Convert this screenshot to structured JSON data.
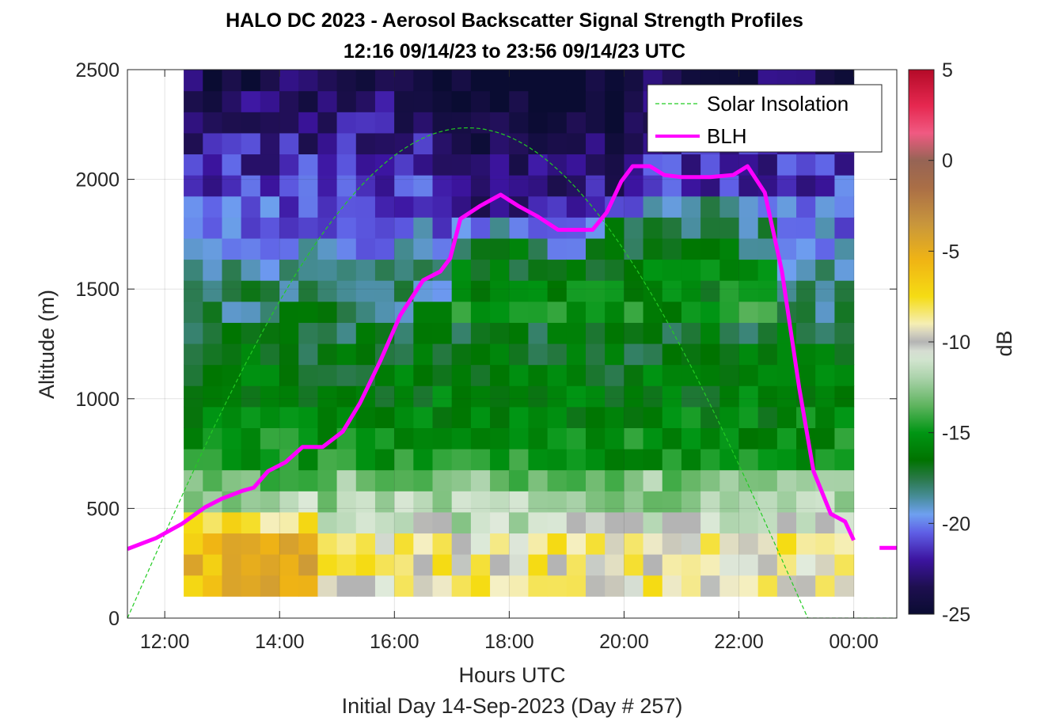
{
  "chart_data": {
    "type": "heatmap",
    "title": "HALO DC 2023 - Aerosol Backscatter Signal Strength Profiles",
    "subtitle": "12:16 09/14/23 to 23:56 09/14/23  UTC",
    "xlabel": "Hours UTC",
    "ylabel": "Altitude (m)",
    "footnote": "Initial Day 14-Sep-2023 (Day # 257)",
    "x_ticks": [
      "12:00",
      "14:00",
      "16:00",
      "18:00",
      "20:00",
      "22:00",
      "00:00"
    ],
    "x_tick_hours": [
      12,
      14,
      16,
      18,
      20,
      22,
      24
    ],
    "xlim_hours": [
      11.35,
      24.75
    ],
    "y_ticks": [
      "0",
      "500",
      "1000",
      "1500",
      "2000",
      "2500"
    ],
    "ylim": [
      0,
      2500
    ],
    "grid": true,
    "colorbar": {
      "label": "dB",
      "ticks": [
        "5",
        "0",
        "-5",
        "-10",
        "-15",
        "-20",
        "-25"
      ],
      "range": [
        -25,
        5
      ]
    },
    "heatmap_extent": {
      "t_start": 12.33,
      "t_end": 24.0,
      "z_start": 100,
      "z_end": 2500,
      "n_time": 35,
      "n_alt": 25
    },
    "legend": {
      "position": "top-right",
      "entries": [
        {
          "label": "Solar Insolation",
          "style": "dashed",
          "color": "#22cc22"
        },
        {
          "label": "BLH",
          "style": "solid",
          "color": "#ff00ff"
        }
      ]
    },
    "series": [
      {
        "name": "BLH",
        "color": "#ff00ff",
        "t": [
          11.35,
          11.85,
          12.3,
          12.7,
          13.0,
          13.35,
          13.55,
          13.8,
          14.1,
          14.4,
          14.75,
          15.1,
          15.4,
          15.75,
          16.1,
          16.5,
          16.8,
          16.97,
          17.15,
          17.5,
          17.85,
          18.15,
          18.5,
          18.85,
          19.15,
          19.45,
          19.7,
          19.95,
          20.15,
          20.45,
          20.7,
          21.0,
          21.5,
          21.9,
          22.15,
          22.45,
          22.75,
          23.05,
          23.3,
          23.6,
          23.85,
          24.0
        ],
        "z": [
          315,
          365,
          430,
          505,
          545,
          580,
          595,
          670,
          710,
          780,
          780,
          850,
          980,
          1170,
          1380,
          1540,
          1580,
          1640,
          1820,
          1880,
          1930,
          1880,
          1830,
          1770,
          1770,
          1770,
          1850,
          1990,
          2060,
          2060,
          2020,
          2010,
          2010,
          2020,
          2060,
          1940,
          1580,
          1050,
          670,
          475,
          440,
          355
        ]
      },
      {
        "name": "BLH",
        "color": "#ff00ff",
        "t": [
          24.45,
          24.75
        ],
        "z": [
          320,
          320
        ]
      },
      {
        "name": "Solar Insolation",
        "color": "#22cc22",
        "t_rise": 11.35,
        "t_set": 23.2,
        "peak": 2235
      }
    ]
  }
}
